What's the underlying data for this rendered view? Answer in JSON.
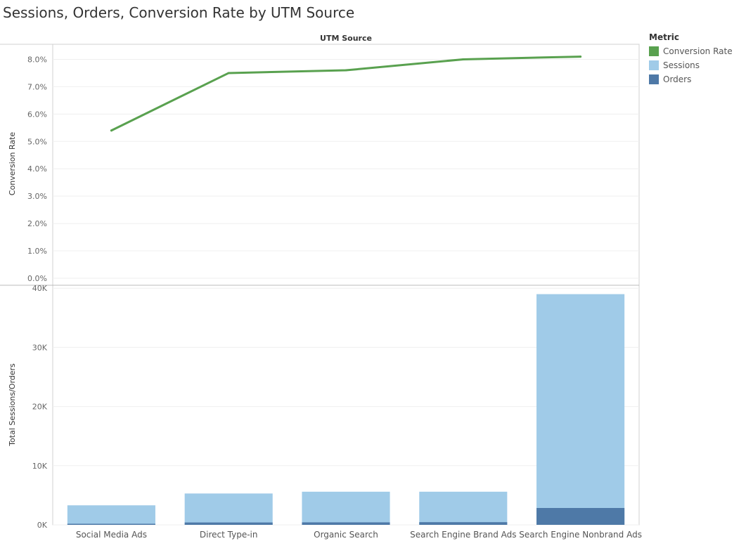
{
  "title": "Sessions, Orders, Conversion Rate by UTM Source",
  "legend": {
    "title": "Metric",
    "items": [
      {
        "label": "Conversion Rate",
        "color": "#59a14f"
      },
      {
        "label": "Sessions",
        "color": "#a0cbe8"
      },
      {
        "label": "Orders",
        "color": "#4e79a7"
      }
    ]
  },
  "chart_data": [
    {
      "type": "line",
      "title": "UTM Source",
      "xlabel": "UTM Source",
      "ylabel": "Conversion Rate",
      "categories": [
        "Social Media Ads",
        "Direct Type-in",
        "Organic Search",
        "Search Engine Brand Ads",
        "Search Engine Nonbrand Ads"
      ],
      "series": [
        {
          "name": "Conversion Rate",
          "color": "#59a14f",
          "values": [
            5.4,
            7.5,
            7.6,
            8.0,
            8.1
          ]
        }
      ],
      "ylim": [
        0,
        8.5
      ],
      "yticks": [
        "0.0%",
        "1.0%",
        "2.0%",
        "3.0%",
        "4.0%",
        "5.0%",
        "6.0%",
        "7.0%",
        "8.0%"
      ],
      "grid": true
    },
    {
      "type": "bar",
      "xlabel": "",
      "ylabel": "Total Sessions/Orders",
      "categories": [
        "Social Media Ads",
        "Direct Type-in",
        "Organic Search",
        "Search Engine Brand Ads",
        "Search Engine Nonbrand Ads"
      ],
      "series": [
        {
          "name": "Sessions",
          "color": "#a0cbe8",
          "values": [
            3300,
            5300,
            5600,
            5600,
            39000
          ]
        },
        {
          "name": "Orders",
          "color": "#4e79a7",
          "values": [
            180,
            400,
            420,
            450,
            2850
          ]
        }
      ],
      "ylim": [
        0,
        40500
      ],
      "yticks": [
        "0K",
        "10K",
        "20K",
        "30K",
        "40K"
      ],
      "grid": true
    }
  ]
}
